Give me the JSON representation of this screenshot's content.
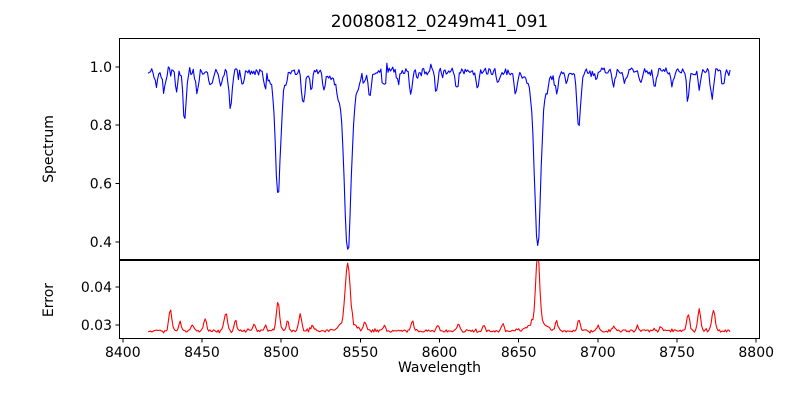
{
  "chart_data": {
    "type": "line",
    "title": "20080812_0249m41_091",
    "xlabel": "Wavelength",
    "xlim": [
      8397.6,
      8802.4
    ],
    "x_ticks": [
      8400,
      8450,
      8500,
      8550,
      8600,
      8650,
      8700,
      8750,
      8800
    ],
    "x_tick_labels": [
      "8400",
      "8450",
      "8500",
      "8550",
      "8600",
      "8650",
      "8700",
      "8750",
      "8800"
    ],
    "x_start": 8416,
    "x_end": 8784,
    "x_step": 0.75,
    "grid": false,
    "legend": "none",
    "background": "#ffffff",
    "axis_color": "#000000",
    "features_schema": [
      "center_wavelength",
      "amplitude",
      "sigma_wavelength"
    ],
    "subplots": [
      {
        "id": "spectrum",
        "type": "line",
        "ylabel": "Spectrum",
        "line_color": "#0000ff",
        "ylim": [
          0.338,
          1.099
        ],
        "y_ticks": [
          0.4,
          0.6,
          0.8,
          1.0
        ],
        "y_tick_labels": [
          "0.4",
          "0.6",
          "0.8",
          "1.0"
        ],
        "base_level": 0.985,
        "noise_amplitude": 0.012,
        "noise_skew": -1,
        "features": [
          [
            8421,
            -0.05,
            0.8
          ],
          [
            8426,
            -0.07,
            0.9
          ],
          [
            8434,
            -0.06,
            0.8
          ],
          [
            8439,
            -0.16,
            1.0
          ],
          [
            8447,
            -0.07,
            0.8
          ],
          [
            8456,
            -0.05,
            0.8
          ],
          [
            8462,
            -0.06,
            0.8
          ],
          [
            8468,
            -0.12,
            1.0
          ],
          [
            8476,
            -0.05,
            0.8
          ],
          [
            8490,
            -0.04,
            0.8
          ],
          [
            8498,
            -0.37,
            1.6
          ],
          [
            8498,
            -0.05,
            4.5
          ],
          [
            8514,
            -0.12,
            1.1
          ],
          [
            8519,
            -0.06,
            0.9
          ],
          [
            8527,
            -0.05,
            0.8
          ],
          [
            8536,
            -0.04,
            0.8
          ],
          [
            8542,
            -0.52,
            2.1
          ],
          [
            8542,
            -0.09,
            6.5
          ],
          [
            8556,
            -0.07,
            0.9
          ],
          [
            8565,
            -0.04,
            0.8
          ],
          [
            8574,
            -0.04,
            0.8
          ],
          [
            8582,
            -0.07,
            0.9
          ],
          [
            8598,
            -0.07,
            0.9
          ],
          [
            8611,
            -0.06,
            0.9
          ],
          [
            8624,
            -0.06,
            0.8
          ],
          [
            8637,
            -0.04,
            0.8
          ],
          [
            8648,
            -0.07,
            0.9
          ],
          [
            8662,
            -0.51,
            1.9
          ],
          [
            8662,
            -0.09,
            5.5
          ],
          [
            8674,
            -0.06,
            0.9
          ],
          [
            8680,
            -0.04,
            0.8
          ],
          [
            8688,
            -0.19,
            1.2
          ],
          [
            8699,
            -0.04,
            0.8
          ],
          [
            8710,
            -0.05,
            0.8
          ],
          [
            8717,
            -0.04,
            0.8
          ],
          [
            8727,
            -0.04,
            0.8
          ],
          [
            8736,
            -0.05,
            0.8
          ],
          [
            8747,
            -0.05,
            0.8
          ],
          [
            8757,
            -0.08,
            0.9
          ],
          [
            8764,
            -0.06,
            0.8
          ],
          [
            8772,
            -0.09,
            0.9
          ],
          [
            8779,
            -0.05,
            0.8
          ]
        ]
      },
      {
        "id": "error",
        "type": "line",
        "ylabel": "Error",
        "line_color": "#ff0000",
        "ylim": [
          0.0263,
          0.0471
        ],
        "y_ticks": [
          0.03,
          0.04
        ],
        "y_tick_labels": [
          "0.03",
          "0.04"
        ],
        "base_level": 0.0284,
        "noise_amplitude": 0.00032,
        "noise_skew": 1,
        "features": [
          [
            8430,
            0.006,
            0.9
          ],
          [
            8436,
            0.0026,
            0.8
          ],
          [
            8444,
            0.0015,
            0.8
          ],
          [
            8452,
            0.003,
            0.9
          ],
          [
            8465,
            0.0048,
            1.0
          ],
          [
            8471,
            0.0024,
            0.8
          ],
          [
            8483,
            0.0016,
            0.8
          ],
          [
            8490,
            0.0014,
            0.8
          ],
          [
            8498,
            0.0078,
            1.0
          ],
          [
            8504,
            0.0028,
            0.8
          ],
          [
            8512,
            0.0044,
            0.9
          ],
          [
            8520,
            0.0016,
            0.8
          ],
          [
            8542,
            0.0158,
            1.5
          ],
          [
            8542,
            0.0022,
            5.0
          ],
          [
            8553,
            0.0022,
            0.9
          ],
          [
            8565,
            0.0014,
            0.8
          ],
          [
            8583,
            0.0026,
            0.9
          ],
          [
            8599,
            0.0014,
            0.8
          ],
          [
            8612,
            0.002,
            0.8
          ],
          [
            8628,
            0.0013,
            0.8
          ],
          [
            8640,
            0.002,
            0.8
          ],
          [
            8662,
            0.0172,
            1.2
          ],
          [
            8662,
            0.003,
            4.5
          ],
          [
            8674,
            0.0022,
            0.9
          ],
          [
            8688,
            0.003,
            0.9
          ],
          [
            8700,
            0.0013,
            0.8
          ],
          [
            8710,
            0.0015,
            0.8
          ],
          [
            8725,
            0.0013,
            0.8
          ],
          [
            8740,
            0.0014,
            0.8
          ],
          [
            8757,
            0.0046,
            1.0
          ],
          [
            8764,
            0.006,
            0.9
          ],
          [
            8773,
            0.0056,
            1.0
          ]
        ]
      }
    ]
  }
}
